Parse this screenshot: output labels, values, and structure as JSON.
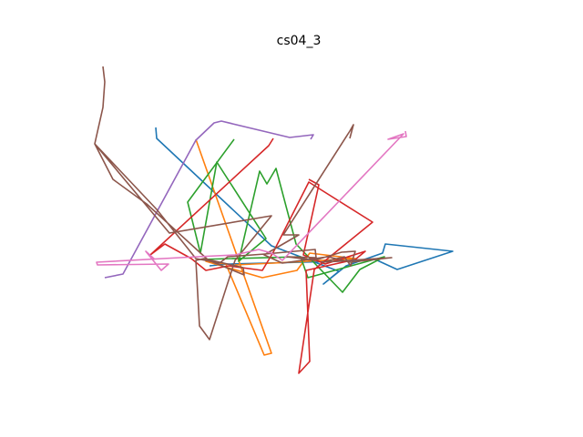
{
  "chart_data": {
    "type": "line",
    "title": "cs04_3",
    "xlabel": "",
    "ylabel": "",
    "axes_visible": false,
    "grid": false,
    "legend": "none",
    "xlim": [
      100,
      500
    ],
    "ylim": [
      415,
      70
    ],
    "series": [
      {
        "color": "#1f77b4",
        "points": [
          [
            171,
            140
          ],
          [
            172,
            152
          ],
          [
            298,
            270
          ],
          [
            306,
            273
          ],
          [
            372,
            298
          ],
          [
            355,
            312
          ],
          [
            380,
            292
          ],
          [
            420,
            278
          ],
          [
            423,
            268
          ],
          [
            497,
            276
          ],
          [
            436,
            296
          ],
          [
            412,
            285
          ],
          [
            372,
            287
          ],
          [
            250,
            290
          ],
          [
            230,
            292
          ]
        ]
      },
      {
        "color": "#ff7f0e",
        "points": [
          [
            215,
            153
          ],
          [
            298,
            388
          ],
          [
            290,
            390
          ],
          [
            248,
            290
          ],
          [
            226,
            287
          ],
          [
            288,
            305
          ],
          [
            326,
            297
          ],
          [
            340,
            278
          ],
          [
            390,
            284
          ],
          [
            300,
            289
          ],
          [
            258,
            291
          ]
        ]
      },
      {
        "color": "#2ca02c",
        "points": [
          [
            257,
            153
          ],
          [
            206,
            222
          ],
          [
            220,
            278
          ],
          [
            238,
            178
          ],
          [
            292,
            262
          ],
          [
            262,
            287
          ],
          [
            285,
            188
          ],
          [
            293,
            202
          ],
          [
            303,
            185
          ],
          [
            325,
            268
          ],
          [
            376,
            321
          ],
          [
            395,
            296
          ],
          [
            422,
            282
          ],
          [
            338,
            305
          ],
          [
            330,
            282
          ],
          [
            218,
            285
          ]
        ]
      },
      {
        "color": "#d62728",
        "points": [
          [
            300,
            152
          ],
          [
            295,
            160
          ],
          [
            165,
            280
          ],
          [
            181,
            268
          ],
          [
            210,
            284
          ],
          [
            226,
            297
          ],
          [
            251,
            292
          ],
          [
            288,
            297
          ],
          [
            300,
            277
          ],
          [
            339,
            200
          ],
          [
            409,
            244
          ],
          [
            345,
            296
          ],
          [
            328,
            410
          ],
          [
            340,
            397
          ],
          [
            336,
            297
          ],
          [
            390,
            285
          ],
          [
            401,
            276
          ],
          [
            357,
            290
          ],
          [
            333,
            280
          ],
          [
            350,
            203
          ],
          [
            339,
            197
          ]
        ]
      },
      {
        "color": "#9467bd",
        "points": [
          [
            115,
            305
          ],
          [
            135,
            301
          ],
          [
            215,
            154
          ],
          [
            235,
            135
          ],
          [
            243,
            133
          ],
          [
            318,
            151
          ],
          [
            344,
            148
          ],
          [
            341,
            153
          ]
        ]
      },
      {
        "color": "#8c564b",
        "points": [
          [
            113,
            73
          ],
          [
            115,
            90
          ],
          [
            113,
            118
          ],
          [
            104,
            158
          ],
          [
            124,
            197
          ],
          [
            161,
            224
          ],
          [
            229,
            286
          ],
          [
            268,
            302
          ],
          [
            267,
            294
          ],
          [
            224,
            284
          ],
          [
            215,
            286
          ],
          [
            219,
            358
          ],
          [
            230,
            373
          ],
          [
            258,
            286
          ],
          [
            298,
            237
          ],
          [
            186,
            256
          ],
          [
            104,
            158
          ],
          [
            172,
            230
          ],
          [
            215,
            284
          ],
          [
            241,
            289
          ],
          [
            250,
            282
          ],
          [
            291,
            279
          ],
          [
            346,
            274
          ],
          [
            347,
            283
          ],
          [
            315,
            282
          ],
          [
            345,
            286
          ],
          [
            375,
            277
          ],
          [
            390,
            276
          ],
          [
            385,
            292
          ],
          [
            378,
            282
          ],
          [
            354,
            288
          ],
          [
            430,
            283
          ],
          [
            385,
            288
          ],
          [
            360,
            282
          ],
          [
            310,
            289
          ],
          [
            290,
            280
          ],
          [
            328,
            258
          ],
          [
            311,
            258
          ],
          [
            384,
            144
          ],
          [
            388,
            137
          ],
          [
            384,
            152
          ]
        ]
      },
      {
        "color": "#e377c2",
        "points": [
          [
            445,
            144
          ],
          [
            446,
            150
          ],
          [
            426,
            153
          ],
          [
            443,
            147
          ],
          [
            310,
            286
          ],
          [
            298,
            278
          ],
          [
            284,
            274
          ],
          [
            258,
            280
          ],
          [
            216,
            282
          ],
          [
            106,
            288
          ],
          [
            107,
            291
          ],
          [
            185,
            290
          ],
          [
            177,
            297
          ],
          [
            160,
            276
          ],
          [
            170,
            285
          ]
        ]
      }
    ]
  }
}
